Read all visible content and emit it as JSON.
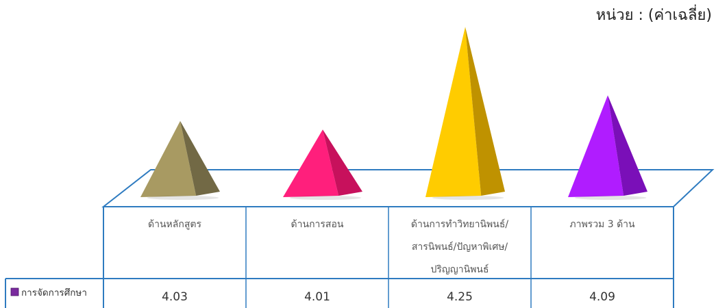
{
  "unit_label": "หน่วย : (ค่าเฉลี่ย)",
  "chart_data": {
    "type": "bar",
    "shape": "pyramid-3d",
    "categories": [
      [
        "ด้านหลักสูตร"
      ],
      [
        "ด้านการสอน"
      ],
      [
        "ด้านการทำวิทยานิพนธ์/",
        "สารนิพนธ์/ปัญหาพิเศษ/",
        "ปริญญานิพนธ์"
      ],
      [
        "ภาพรวม 3 ด้าน"
      ]
    ],
    "series": [
      {
        "name": "การจัดการศึกษา",
        "values": [
          "4.03",
          "4.01",
          "4.25",
          "4.09"
        ]
      }
    ],
    "colors": [
      "#A89A62",
      "#FF1F7C",
      "#FFCC00",
      "#B01CFF"
    ],
    "shade_colors": [
      "#726945",
      "#C7115C",
      "#BF9200",
      "#7A0FB8"
    ],
    "legend_swatch_color": "#7A2A9E",
    "ylim": [
      3.9,
      4.3
    ],
    "grid": false,
    "legend": "data-table"
  }
}
